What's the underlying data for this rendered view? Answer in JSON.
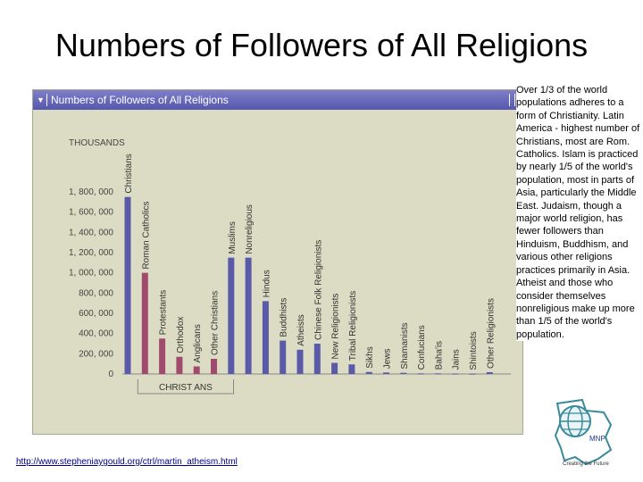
{
  "slide": {
    "title": "Numbers of Followers of All Religions",
    "source_url": "http://www.stepheniaygould.org/ctrl/martin_atheism.html",
    "logo_text": "MNP",
    "logo_caption": "Creating the Future",
    "side_text": "Over 1/3  of the world populations adheres to a form of Christianity. Latin America - highest number of Christians, most are Rom. Catholics. Islam is practiced by nearly 1/5 of the world's population, most in parts of Asia, particularly the Middle East. Judaism, though a major world religion, has fewer followers than Hinduism, Buddhism, and various other religions practices primarily in Asia. Atheist and those who consider themselves nonreligious make up more than 1/5 of the world's population."
  },
  "chart_data": {
    "type": "bar",
    "title": "Numbers of Followers of All Religions",
    "ylabel": "THOUSANDS",
    "ylim": [
      0,
      1800000
    ],
    "yticks": [
      0,
      200000,
      400000,
      600000,
      800000,
      1000000,
      1200000,
      1400000,
      1600000,
      1800000
    ],
    "ytick_labels": [
      "0",
      "200, 000",
      "400, 000",
      "600, 000",
      "800, 000",
      "1, 000, 000",
      "1, 200, 000",
      "1, 400, 000",
      "1, 600, 000",
      "1, 800, 000"
    ],
    "grid": false,
    "group_label": "CHRIST ANS",
    "categories": [
      "Christians",
      "Roman Catholics",
      "Protestants",
      "Orthodox",
      "Anglicans",
      "Other Christians",
      "Muslims",
      "Nonreligious",
      "Hindus",
      "Buddhists",
      "Atheists",
      "Chinese Folk Religionists",
      "New Religionists",
      "Tribal Religionists",
      "Sikhs",
      "Jews",
      "Shamanists",
      "Confucians",
      "Baha'is",
      "Jains",
      "Shintoists",
      "Other Religionists"
    ],
    "values": [
      1750000,
      1000000,
      350000,
      170000,
      75000,
      150000,
      1150000,
      1150000,
      720000,
      330000,
      240000,
      300000,
      110000,
      95000,
      20000,
      15000,
      12000,
      6000,
      6000,
      4000,
      3000,
      18000
    ],
    "colors": {
      "primary": "#5a5aa8",
      "christian_subgroup": "#a04a6e",
      "axis": "#888888"
    }
  }
}
